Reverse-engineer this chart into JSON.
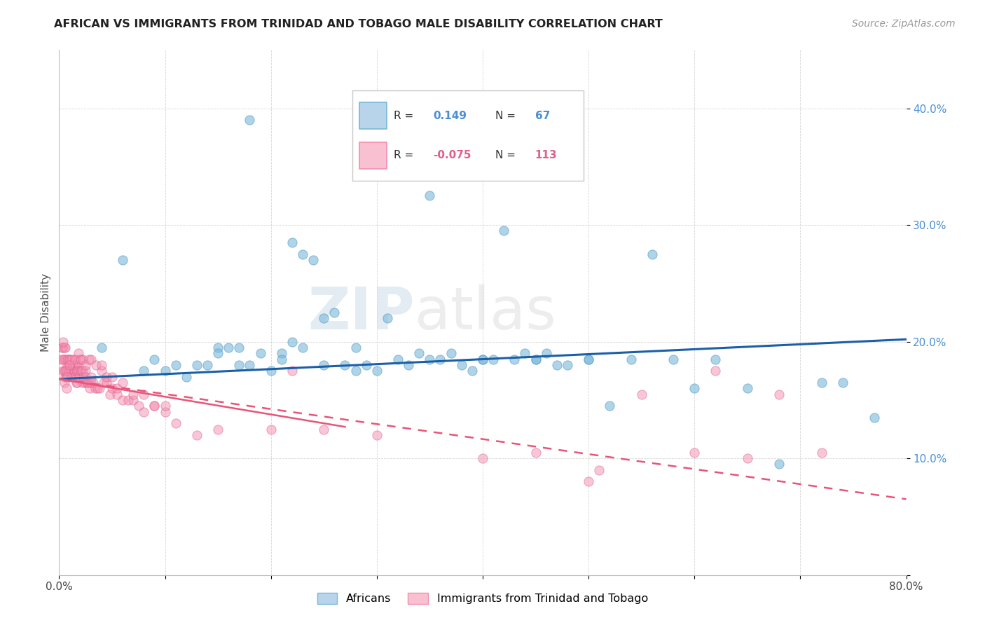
{
  "title": "AFRICAN VS IMMIGRANTS FROM TRINIDAD AND TOBAGO MALE DISABILITY CORRELATION CHART",
  "source": "Source: ZipAtlas.com",
  "ylabel": "Male Disability",
  "xlim": [
    0.0,
    0.8
  ],
  "ylim": [
    0.0,
    0.45
  ],
  "african_color": "#7ab8d9",
  "tt_color": "#f48fb1",
  "african_R": 0.149,
  "african_N": 67,
  "tt_R": -0.075,
  "tt_N": 113,
  "legend_label_1": "Africans",
  "legend_label_2": "Immigrants from Trinidad and Tobago",
  "watermark": "ZIPatlas",
  "african_line_color": "#1a5fa8",
  "tt_line_color": "#e8547a",
  "african_x": [
    0.04,
    0.06,
    0.08,
    0.09,
    0.1,
    0.11,
    0.12,
    0.13,
    0.14,
    0.15,
    0.15,
    0.16,
    0.17,
    0.17,
    0.18,
    0.19,
    0.2,
    0.21,
    0.22,
    0.22,
    0.23,
    0.24,
    0.25,
    0.26,
    0.27,
    0.28,
    0.29,
    0.3,
    0.31,
    0.32,
    0.33,
    0.34,
    0.35,
    0.36,
    0.37,
    0.38,
    0.39,
    0.4,
    0.41,
    0.42,
    0.43,
    0.44,
    0.45,
    0.46,
    0.47,
    0.48,
    0.5,
    0.52,
    0.54,
    0.56,
    0.58,
    0.6,
    0.62,
    0.65,
    0.68,
    0.72,
    0.74,
    0.77,
    0.21,
    0.23,
    0.25,
    0.28,
    0.35,
    0.4,
    0.45,
    0.5,
    0.18
  ],
  "african_y": [
    0.195,
    0.27,
    0.175,
    0.185,
    0.175,
    0.18,
    0.17,
    0.18,
    0.18,
    0.195,
    0.19,
    0.195,
    0.195,
    0.18,
    0.18,
    0.19,
    0.175,
    0.19,
    0.2,
    0.285,
    0.275,
    0.27,
    0.18,
    0.225,
    0.18,
    0.195,
    0.18,
    0.175,
    0.22,
    0.185,
    0.18,
    0.19,
    0.325,
    0.185,
    0.19,
    0.18,
    0.175,
    0.185,
    0.185,
    0.295,
    0.185,
    0.19,
    0.185,
    0.19,
    0.18,
    0.18,
    0.185,
    0.145,
    0.185,
    0.275,
    0.185,
    0.16,
    0.185,
    0.16,
    0.095,
    0.165,
    0.165,
    0.135,
    0.185,
    0.195,
    0.22,
    0.175,
    0.185,
    0.185,
    0.185,
    0.185,
    0.39
  ],
  "tt_x": [
    0.002,
    0.003,
    0.004,
    0.005,
    0.005,
    0.005,
    0.005,
    0.006,
    0.006,
    0.007,
    0.007,
    0.007,
    0.008,
    0.008,
    0.009,
    0.009,
    0.01,
    0.01,
    0.01,
    0.011,
    0.011,
    0.012,
    0.012,
    0.013,
    0.013,
    0.014,
    0.014,
    0.015,
    0.015,
    0.015,
    0.016,
    0.016,
    0.017,
    0.017,
    0.018,
    0.018,
    0.019,
    0.02,
    0.02,
    0.021,
    0.022,
    0.022,
    0.023,
    0.024,
    0.025,
    0.025,
    0.026,
    0.027,
    0.028,
    0.029,
    0.03,
    0.03,
    0.032,
    0.034,
    0.036,
    0.038,
    0.04,
    0.042,
    0.045,
    0.048,
    0.05,
    0.055,
    0.06,
    0.065,
    0.07,
    0.075,
    0.08,
    0.09,
    0.1,
    0.11,
    0.13,
    0.15,
    0.2,
    0.22,
    0.25,
    0.3,
    0.4,
    0.45,
    0.5,
    0.51,
    0.55,
    0.6,
    0.62,
    0.65,
    0.68,
    0.72,
    0.003,
    0.004,
    0.006,
    0.008,
    0.01,
    0.012,
    0.015,
    0.018,
    0.02,
    0.022,
    0.025,
    0.028,
    0.03,
    0.035,
    0.04,
    0.045,
    0.05,
    0.055,
    0.06,
    0.07,
    0.08,
    0.09,
    0.1,
    0.004,
    0.006,
    0.008,
    0.01
  ],
  "tt_y": [
    0.185,
    0.195,
    0.175,
    0.185,
    0.195,
    0.175,
    0.165,
    0.185,
    0.17,
    0.175,
    0.17,
    0.16,
    0.18,
    0.175,
    0.185,
    0.175,
    0.185,
    0.18,
    0.175,
    0.18,
    0.175,
    0.175,
    0.17,
    0.18,
    0.17,
    0.175,
    0.175,
    0.185,
    0.18,
    0.17,
    0.175,
    0.165,
    0.175,
    0.165,
    0.18,
    0.175,
    0.17,
    0.185,
    0.175,
    0.175,
    0.175,
    0.165,
    0.17,
    0.165,
    0.175,
    0.17,
    0.165,
    0.165,
    0.165,
    0.16,
    0.17,
    0.165,
    0.165,
    0.16,
    0.16,
    0.16,
    0.175,
    0.165,
    0.165,
    0.155,
    0.16,
    0.155,
    0.15,
    0.15,
    0.15,
    0.145,
    0.14,
    0.145,
    0.14,
    0.13,
    0.12,
    0.125,
    0.125,
    0.175,
    0.125,
    0.12,
    0.1,
    0.105,
    0.08,
    0.09,
    0.155,
    0.105,
    0.175,
    0.1,
    0.155,
    0.105,
    0.195,
    0.185,
    0.195,
    0.185,
    0.185,
    0.185,
    0.185,
    0.19,
    0.185,
    0.185,
    0.18,
    0.185,
    0.185,
    0.18,
    0.18,
    0.17,
    0.17,
    0.16,
    0.165,
    0.155,
    0.155,
    0.145,
    0.145,
    0.2,
    0.175,
    0.17,
    0.18
  ]
}
